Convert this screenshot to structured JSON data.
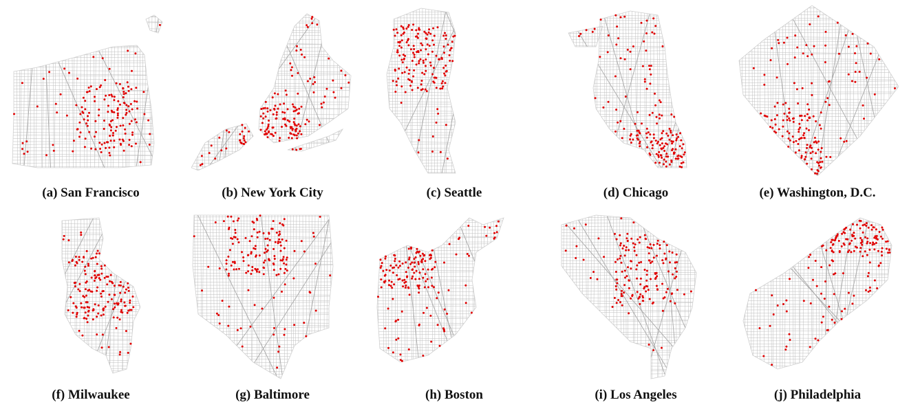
{
  "colors": {
    "street": "#bdbdbd",
    "street_dense": "#c8c8c8",
    "dot": "#e00000",
    "caption": "#111111"
  },
  "panels": [
    {
      "id": "a",
      "caption": "(a) San Francisco"
    },
    {
      "id": "b",
      "caption": "(b) New York City"
    },
    {
      "id": "c",
      "caption": "(c) Seattle"
    },
    {
      "id": "d",
      "caption": "(d) Chicago"
    },
    {
      "id": "e",
      "caption": "(e) Washington, D.C."
    },
    {
      "id": "f",
      "caption": "(f) Milwaukee"
    },
    {
      "id": "g",
      "caption": "(g) Baltimore"
    },
    {
      "id": "h",
      "caption": "(h) Boston"
    },
    {
      "id": "i",
      "caption": "(i) Los Angeles"
    },
    {
      "id": "j",
      "caption": "(j) Philadelphia"
    }
  ]
}
